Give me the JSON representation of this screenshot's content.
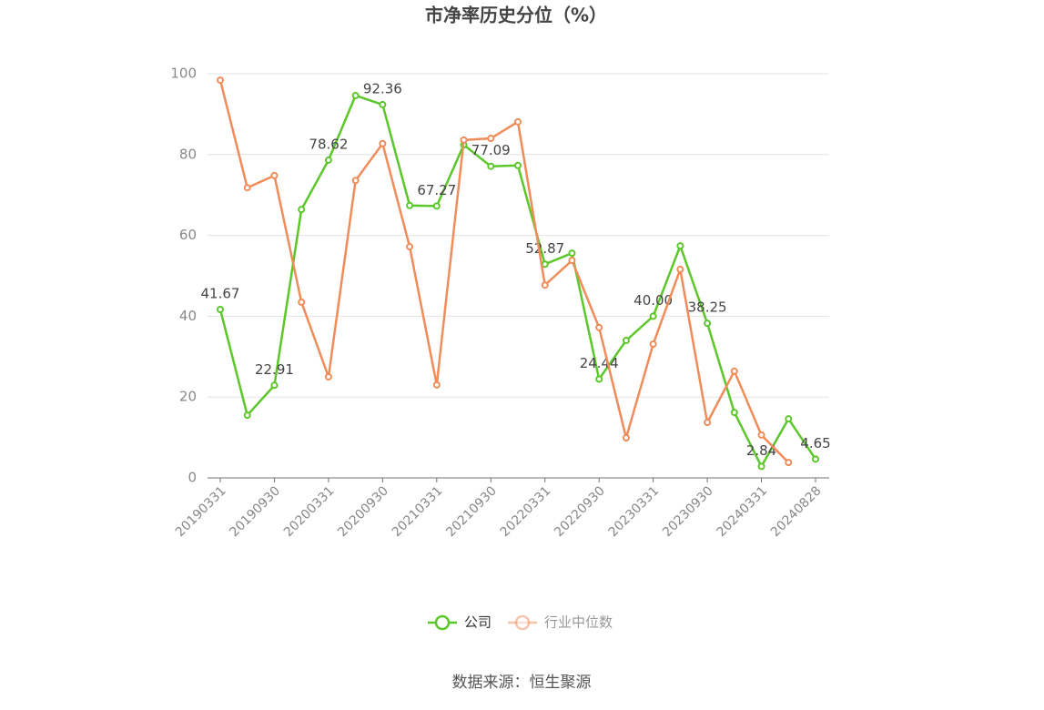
{
  "chart_data": {
    "type": "line",
    "title": "市净率历史分位（%）",
    "categories": [
      "20190331",
      null,
      "20190930",
      null,
      "20200331",
      null,
      "20200930",
      null,
      "20210331",
      null,
      "20210930",
      null,
      "20220331",
      null,
      "20220930",
      null,
      "20230331",
      null,
      "20230930",
      null,
      "20240331",
      null,
      "20240828"
    ],
    "series": [
      {
        "name": "公司",
        "color": "#5cc72a",
        "values": [
          41.67,
          15.5,
          22.91,
          66.4,
          78.62,
          94.6,
          92.36,
          67.4,
          67.27,
          82.4,
          77.09,
          77.3,
          52.87,
          55.6,
          24.44,
          34.0,
          40.0,
          57.4,
          38.25,
          16.2,
          2.84,
          14.6,
          4.65
        ],
        "value_labels": [
          "41.67",
          null,
          "22.91",
          null,
          "78.62",
          null,
          "92.36",
          null,
          "67.27",
          null,
          "77.09",
          null,
          "52.87",
          null,
          "24.44",
          null,
          "40.00",
          null,
          "38.25",
          null,
          "2.84",
          null,
          "4.65"
        ]
      },
      {
        "name": "行业中位数",
        "color": "#f08c5a",
        "values": [
          98.4,
          71.8,
          74.8,
          43.5,
          25.0,
          73.6,
          82.7,
          57.2,
          23.0,
          83.6,
          84.0,
          88.1,
          47.7,
          53.8,
          37.2,
          9.9,
          33.1,
          51.6,
          13.7,
          26.4,
          10.6,
          3.8,
          null
        ]
      }
    ],
    "ylim": [
      0,
      100
    ],
    "yticks": [
      0,
      20,
      40,
      60,
      80,
      100
    ],
    "grid": true,
    "legend": "bottom",
    "source": "数据来源：恒生聚源"
  }
}
